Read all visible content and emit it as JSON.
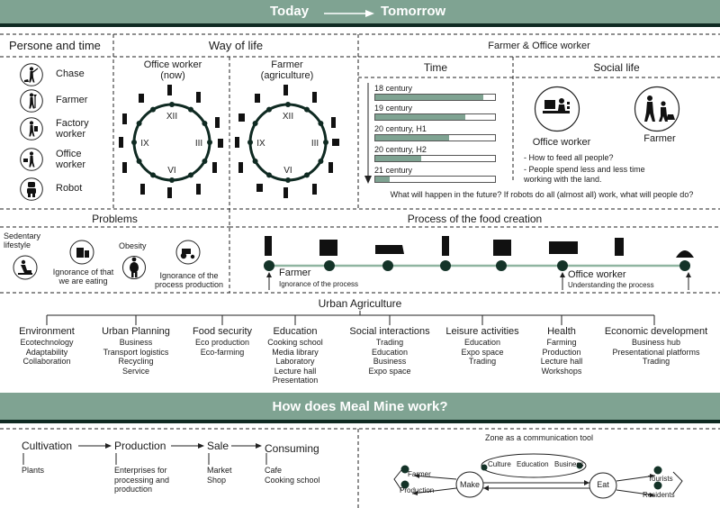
{
  "header": {
    "today": "Today",
    "tomorrow": "Tomorrow"
  },
  "persona": {
    "title": "Persone and time",
    "items": [
      {
        "label": "Chase",
        "icon": "hunter-icon"
      },
      {
        "label": "Farmer",
        "icon": "farmer-icon"
      },
      {
        "label": "Factory worker",
        "icon": "factory-worker-icon"
      },
      {
        "label": "Office worker",
        "icon": "office-worker-icon"
      },
      {
        "label": "Robot",
        "icon": "robot-icon"
      }
    ]
  },
  "way_of_life": {
    "title": "Way of life",
    "office": {
      "label": "Office worker (now)"
    },
    "farmer": {
      "label": "Farmer (agriculture)"
    },
    "clock_numerals": [
      "XII",
      "III",
      "VI",
      "IX"
    ]
  },
  "farmer_office": {
    "title": "Farmer & Office worker",
    "time": {
      "title": "Time",
      "bars": [
        {
          "label": "18 century",
          "fill": 0.9
        },
        {
          "label": "19 century",
          "fill": 0.75
        },
        {
          "label": "20 century, H1",
          "fill": 0.62
        },
        {
          "label": "20 century, H2",
          "fill": 0.38
        },
        {
          "label": "21 century",
          "fill": 0.12
        }
      ]
    },
    "social": {
      "title": "Social life",
      "office_label": "Office worker",
      "farmer_label": "Farmer",
      "bullets": [
        "- How to feed all people?",
        "- People spend less and less time working with the land."
      ]
    },
    "question": "What will happen in the future? If robots do all (almost all) work, what will people do?"
  },
  "problems": {
    "title": "Problems",
    "items": [
      {
        "label": "Sedentary lifestyle"
      },
      {
        "label": "Ignorance of that we are eating"
      },
      {
        "label": "Obesity"
      },
      {
        "label": "Ignorance of the process production"
      }
    ]
  },
  "process": {
    "title": "Process of the food creation",
    "farmer_label": "Farmer",
    "farmer_sub": "Ignorance of the process",
    "office_label": "Office worker",
    "office_sub": "Understanding the process"
  },
  "urban": {
    "title": "Urban Agriculture",
    "categories": [
      {
        "name": "Environment",
        "items": [
          "Ecotechnology",
          "Adaptability",
          "Collaboration"
        ]
      },
      {
        "name": "Urban Planning",
        "items": [
          "Business",
          "Transport logistics",
          "Recycling",
          "Service"
        ]
      },
      {
        "name": "Food security",
        "items": [
          "Eco production",
          "Eco-farming"
        ]
      },
      {
        "name": "Education",
        "items": [
          "Cooking school",
          "Media library",
          "Laboratory",
          "Lecture hall",
          "Presentation"
        ]
      },
      {
        "name": "Social interactions",
        "items": [
          "Trading",
          "Education",
          "Business",
          "Expo space"
        ]
      },
      {
        "name": "Leisure activities",
        "items": [
          "Education",
          "Expo space",
          "Trading"
        ]
      },
      {
        "name": "Health",
        "items": [
          "Farming",
          "Production",
          "Lecture hall",
          "Workshops"
        ]
      },
      {
        "name": "Economic development",
        "items": [
          "Business hub",
          "Presentational platforms",
          "Trading"
        ]
      }
    ]
  },
  "how": {
    "title": "How does Meal Mine work?"
  },
  "flow": {
    "steps": [
      {
        "name": "Cultivation",
        "items": [
          "Plants"
        ]
      },
      {
        "name": "Production",
        "items": [
          "Enterprises for",
          "processing and",
          "production"
        ]
      },
      {
        "name": "Sale",
        "items": [
          "Market",
          "Shop"
        ]
      },
      {
        "name": "Consuming",
        "items": [
          "Cafe",
          "Cooking school"
        ]
      }
    ]
  },
  "zone": {
    "title": "Zone as a communication tool",
    "farmer": "Farmer",
    "production": "Production",
    "make": "Make",
    "culture": "Culture",
    "education": "Education",
    "business": "Business",
    "eat": "Eat",
    "tourists": "Tourists",
    "residents": "Residents"
  },
  "colors": {
    "band": "#7fa392",
    "band_dark": "#0f2a22",
    "bar": "#7fa392",
    "node": "#143328",
    "line": "#8fb5a1",
    "text": "#1a1a1a"
  }
}
